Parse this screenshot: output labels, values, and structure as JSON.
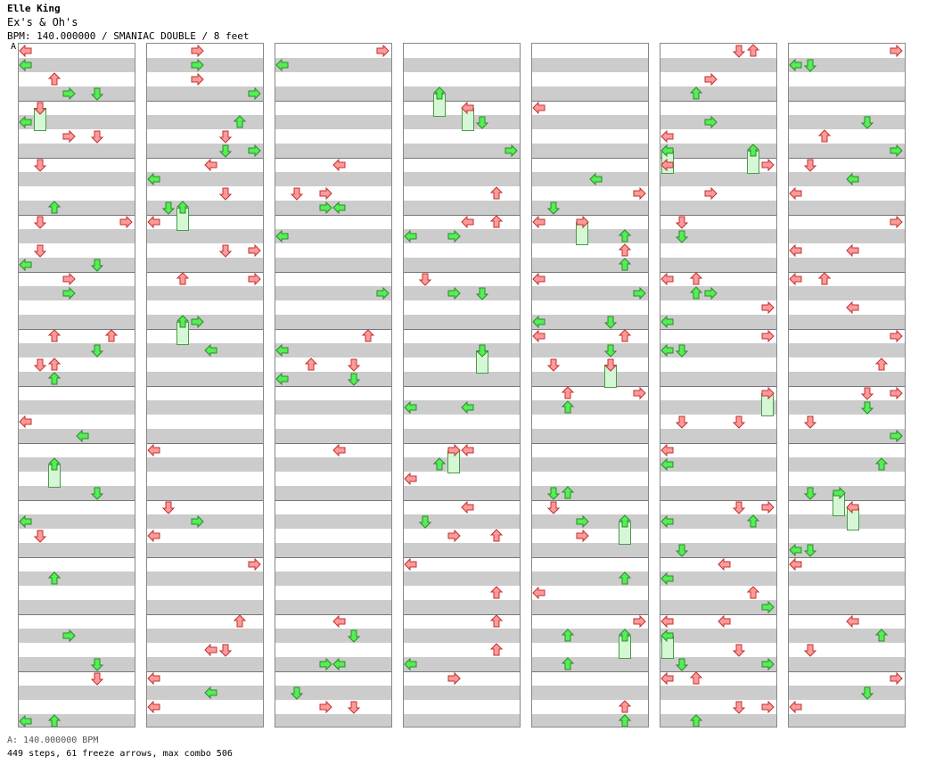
{
  "header": {
    "artist": "Elle King",
    "song": "Ex's & Oh's",
    "info": "BPM: 140.000000 / SMANIAC DOUBLE / 8 feet",
    "bpm_marker": "A"
  },
  "footer": {
    "bpm_legend": "A: 140.000000 BPM",
    "stats": "449 steps, 61 freeze arrows, max combo 506"
  },
  "colors": {
    "stripe": "#cccccc",
    "quarter_note": "#ff8080",
    "eighth_note": "#44dd44",
    "freeze": "#d6f7d6"
  },
  "chart": {
    "columns": 7,
    "measures_per_column": 12,
    "lanes": 8
  }
}
